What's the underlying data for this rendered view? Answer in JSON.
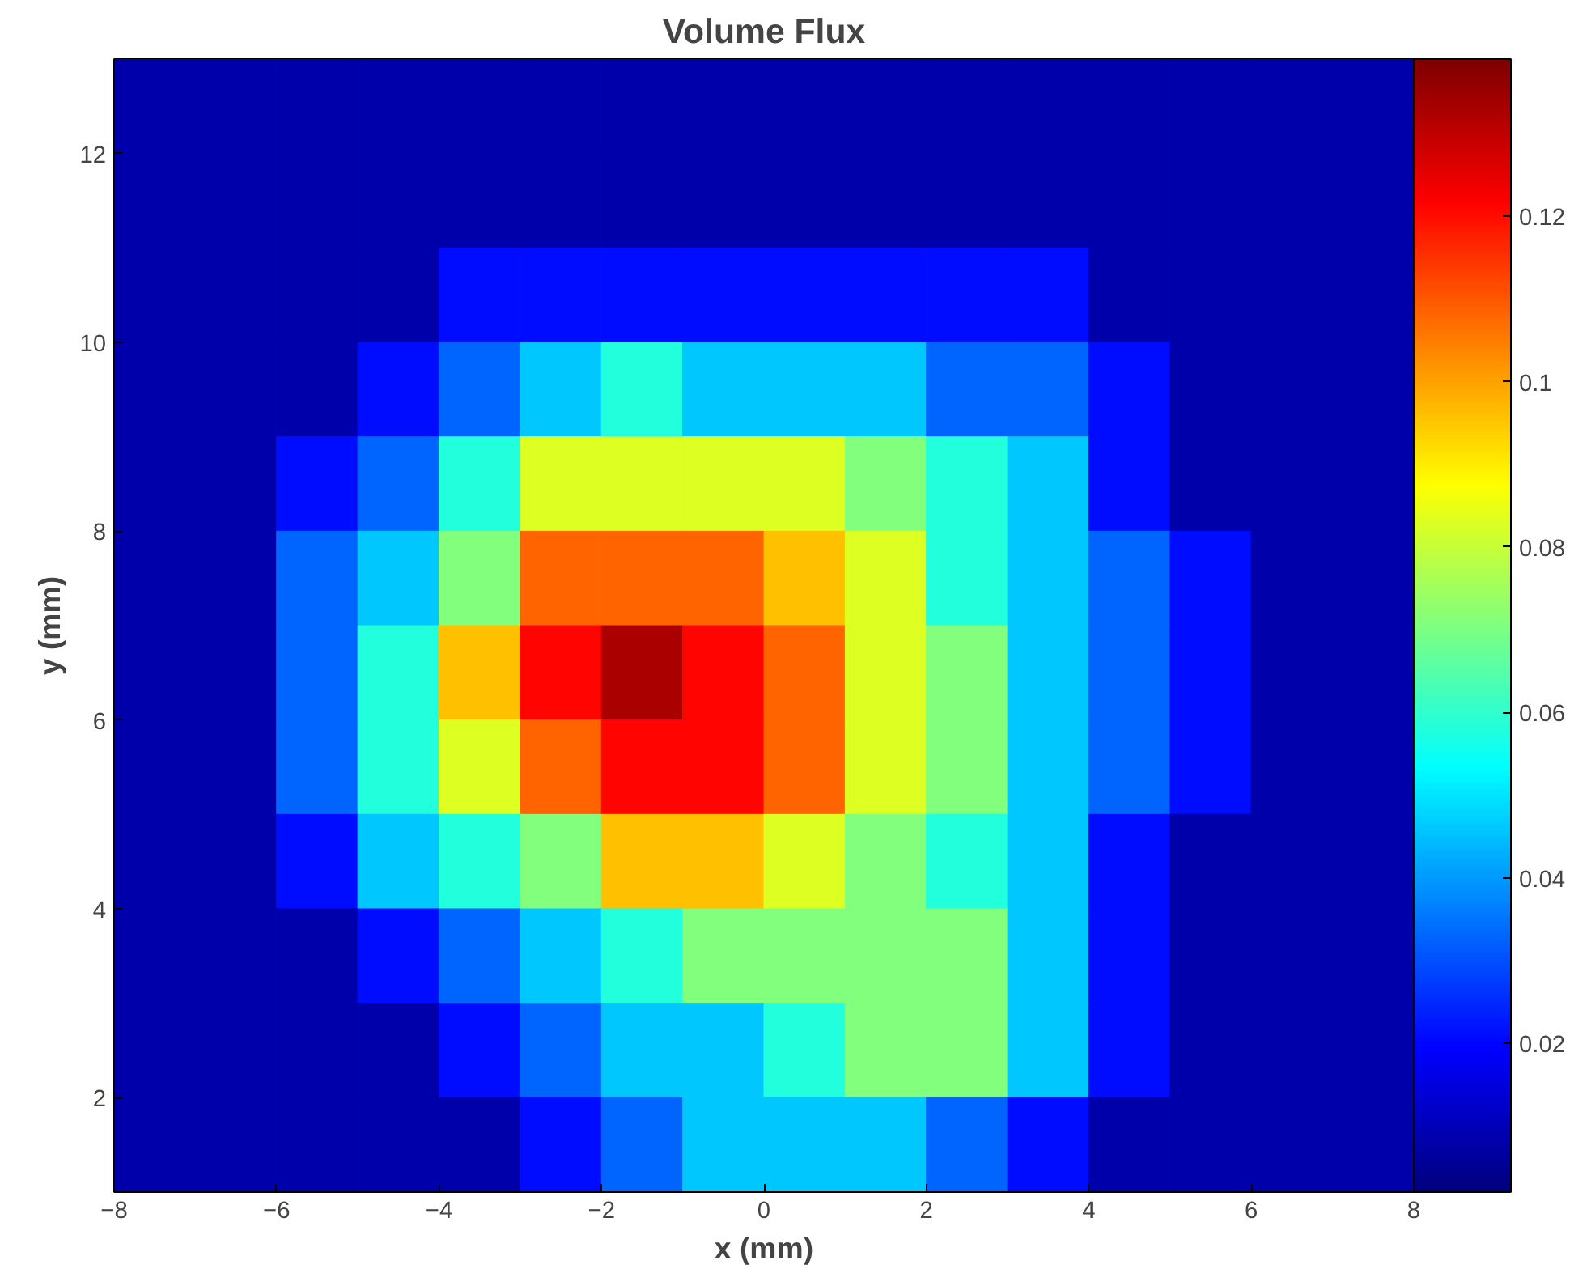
{
  "chart_data": {
    "type": "heatmap",
    "title": "Volume Flux",
    "xlabel": "x (mm)",
    "ylabel": "y (mm)",
    "x": [
      -7.5,
      -6.5,
      -5.5,
      -4.5,
      -3.5,
      -2.5,
      -1.5,
      -0.5,
      0.5,
      1.5,
      2.5,
      3.5,
      4.5,
      5.5,
      6.5,
      7.5
    ],
    "y": [
      12.5,
      11.5,
      10.5,
      9.5,
      8.5,
      7.5,
      6.5,
      5.5,
      4.5,
      3.5,
      2.5,
      1.5
    ],
    "cells": [
      [
        0.008,
        0.008,
        0.008,
        0.008,
        0.008,
        0.008,
        0.008,
        0.008,
        0.008,
        0.008,
        0.008,
        0.008,
        0.008,
        0.008,
        0.008,
        0.008
      ],
      [
        0.008,
        0.008,
        0.008,
        0.008,
        0.008,
        0.008,
        0.008,
        0.008,
        0.008,
        0.008,
        0.008,
        0.008,
        0.008,
        0.008,
        0.008,
        0.008
      ],
      [
        0.008,
        0.008,
        0.008,
        0.008,
        0.021,
        0.021,
        0.021,
        0.021,
        0.021,
        0.021,
        0.021,
        0.021,
        0.008,
        0.008,
        0.008,
        0.008
      ],
      [
        0.008,
        0.008,
        0.008,
        0.021,
        0.033,
        0.046,
        0.058,
        0.046,
        0.046,
        0.046,
        0.033,
        0.033,
        0.021,
        0.008,
        0.008,
        0.008
      ],
      [
        0.008,
        0.008,
        0.021,
        0.033,
        0.058,
        0.083,
        0.083,
        0.083,
        0.083,
        0.071,
        0.058,
        0.046,
        0.021,
        0.008,
        0.008,
        0.008
      ],
      [
        0.008,
        0.008,
        0.033,
        0.046,
        0.071,
        0.108,
        0.108,
        0.108,
        0.096,
        0.083,
        0.058,
        0.046,
        0.033,
        0.021,
        0.008,
        0.008
      ],
      [
        0.008,
        0.008,
        0.033,
        0.058,
        0.096,
        0.121,
        0.133,
        0.121,
        0.108,
        0.083,
        0.071,
        0.046,
        0.033,
        0.021,
        0.008,
        0.008
      ],
      [
        0.008,
        0.008,
        0.033,
        0.058,
        0.083,
        0.108,
        0.121,
        0.121,
        0.108,
        0.083,
        0.071,
        0.046,
        0.033,
        0.021,
        0.008,
        0.008
      ],
      [
        0.008,
        0.008,
        0.021,
        0.046,
        0.058,
        0.071,
        0.096,
        0.096,
        0.083,
        0.071,
        0.058,
        0.046,
        0.021,
        0.008,
        0.008,
        0.008
      ],
      [
        0.008,
        0.008,
        0.008,
        0.021,
        0.033,
        0.046,
        0.058,
        0.071,
        0.071,
        0.071,
        0.071,
        0.046,
        0.021,
        0.008,
        0.008,
        0.008
      ],
      [
        0.008,
        0.008,
        0.008,
        0.008,
        0.021,
        0.033,
        0.046,
        0.046,
        0.058,
        0.071,
        0.071,
        0.046,
        0.021,
        0.008,
        0.008,
        0.008
      ],
      [
        0.008,
        0.008,
        0.008,
        0.008,
        0.008,
        0.021,
        0.033,
        0.046,
        0.046,
        0.046,
        0.033,
        0.021,
        0.008,
        0.008,
        0.008,
        0.008
      ]
    ],
    "xlim": [
      -8,
      8
    ],
    "ylim": [
      1,
      13
    ],
    "xticks": [
      -8,
      -6,
      -4,
      -2,
      0,
      2,
      4,
      6,
      8
    ],
    "yticks": [
      2,
      4,
      6,
      8,
      10,
      12
    ],
    "clim": [
      0.002,
      0.139
    ],
    "cticks": [
      0.02,
      0.04,
      0.06,
      0.08,
      0.1,
      0.12
    ]
  }
}
